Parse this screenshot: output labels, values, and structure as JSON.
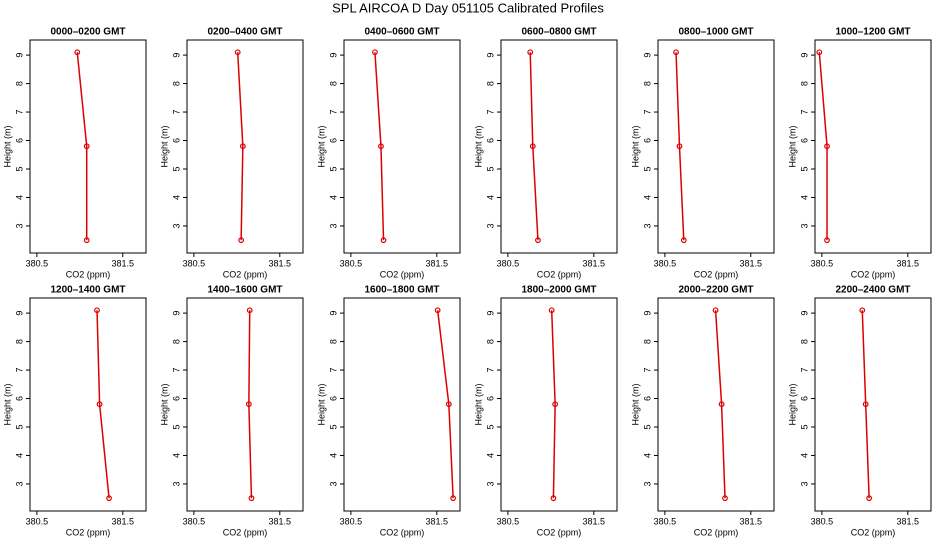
{
  "title": "SPL AIRCOA D  Day 051105  Calibrated Profiles",
  "chart_data": [
    {
      "type": "line",
      "title": "0000–0200 GMT",
      "x_label": "CO2 (ppm)",
      "y_label": "Height (m)",
      "xlim": [
        380.42,
        381.77
      ],
      "ylim": [
        2.05,
        9.53
      ],
      "xticks": [
        380.5,
        381.5
      ],
      "yticks": [
        3,
        4,
        5,
        6,
        7,
        8,
        9
      ],
      "x": [
        380.97,
        381.08,
        381.08
      ],
      "series": [
        {
          "color": "#dd0000",
          "values": [
            9.1,
            5.8,
            2.5
          ]
        }
      ]
    },
    {
      "type": "line",
      "title": "0200–0400 GMT",
      "x_label": "CO2 (ppm)",
      "y_label": "Height (m)",
      "xlim": [
        380.42,
        381.77
      ],
      "ylim": [
        2.05,
        9.53
      ],
      "xticks": [
        380.5,
        381.5
      ],
      "yticks": [
        3,
        4,
        5,
        6,
        7,
        8,
        9
      ],
      "x": [
        381.01,
        381.07,
        381.05
      ],
      "series": [
        {
          "color": "#dd0000",
          "values": [
            9.1,
            5.8,
            2.5
          ]
        }
      ]
    },
    {
      "type": "line",
      "title": "0400–0600 GMT",
      "x_label": "CO2 (ppm)",
      "y_label": "Height (m)",
      "xlim": [
        380.42,
        381.77
      ],
      "ylim": [
        2.05,
        9.53
      ],
      "xticks": [
        380.5,
        381.5
      ],
      "yticks": [
        3,
        4,
        5,
        6,
        7,
        8,
        9
      ],
      "x": [
        380.78,
        380.85,
        380.88
      ],
      "series": [
        {
          "color": "#dd0000",
          "values": [
            9.1,
            5.8,
            2.5
          ]
        }
      ]
    },
    {
      "type": "line",
      "title": "0600–0800 GMT",
      "x_label": "CO2 (ppm)",
      "y_label": "Height (m)",
      "xlim": [
        380.42,
        381.77
      ],
      "ylim": [
        2.05,
        9.53
      ],
      "xticks": [
        380.5,
        381.5
      ],
      "yticks": [
        3,
        4,
        5,
        6,
        7,
        8,
        9
      ],
      "x": [
        380.76,
        380.79,
        380.85
      ],
      "series": [
        {
          "color": "#dd0000",
          "values": [
            9.1,
            5.8,
            2.5
          ]
        }
      ]
    },
    {
      "type": "line",
      "title": "0800–1000 GMT",
      "x_label": "CO2 (ppm)",
      "y_label": "Height (m)",
      "xlim": [
        380.42,
        381.77
      ],
      "ylim": [
        2.05,
        9.53
      ],
      "xticks": [
        380.5,
        381.5
      ],
      "yticks": [
        3,
        4,
        5,
        6,
        7,
        8,
        9
      ],
      "x": [
        380.63,
        380.67,
        380.72
      ],
      "series": [
        {
          "color": "#dd0000",
          "values": [
            9.1,
            5.8,
            2.5
          ]
        }
      ]
    },
    {
      "type": "line",
      "title": "1000–1200 GMT",
      "x_label": "CO2 (ppm)",
      "y_label": "Height (m)",
      "xlim": [
        380.42,
        381.77
      ],
      "ylim": [
        2.05,
        9.53
      ],
      "xticks": [
        380.5,
        381.5
      ],
      "yticks": [
        3,
        4,
        5,
        6,
        7,
        8,
        9
      ],
      "x": [
        380.47,
        380.56,
        380.56
      ],
      "series": [
        {
          "color": "#dd0000",
          "values": [
            9.1,
            5.8,
            2.5
          ]
        }
      ]
    },
    {
      "type": "line",
      "title": "1200–1400 GMT",
      "x_label": "CO2 (ppm)",
      "y_label": "Height (m)",
      "xlim": [
        380.42,
        381.77
      ],
      "ylim": [
        2.05,
        9.53
      ],
      "xticks": [
        380.5,
        381.5
      ],
      "yticks": [
        3,
        4,
        5,
        6,
        7,
        8,
        9
      ],
      "x": [
        381.2,
        381.23,
        381.34
      ],
      "series": [
        {
          "color": "#dd0000",
          "values": [
            9.1,
            5.8,
            2.5
          ]
        }
      ]
    },
    {
      "type": "line",
      "title": "1400–1600 GMT",
      "x_label": "CO2 (ppm)",
      "y_label": "Height (m)",
      "xlim": [
        380.42,
        381.77
      ],
      "ylim": [
        2.05,
        9.53
      ],
      "xticks": [
        380.5,
        381.5
      ],
      "yticks": [
        3,
        4,
        5,
        6,
        7,
        8,
        9
      ],
      "x": [
        381.15,
        381.14,
        381.17
      ],
      "series": [
        {
          "color": "#dd0000",
          "values": [
            9.1,
            5.8,
            2.5
          ]
        }
      ]
    },
    {
      "type": "line",
      "title": "1600–1800 GMT",
      "x_label": "CO2 (ppm)",
      "y_label": "Height (m)",
      "xlim": [
        380.42,
        381.77
      ],
      "ylim": [
        2.05,
        9.53
      ],
      "xticks": [
        380.5,
        381.5
      ],
      "yticks": [
        3,
        4,
        5,
        6,
        7,
        8,
        9
      ],
      "x": [
        381.51,
        381.64,
        381.69
      ],
      "series": [
        {
          "color": "#dd0000",
          "values": [
            9.1,
            5.8,
            2.5
          ]
        }
      ]
    },
    {
      "type": "line",
      "title": "1800–2000 GMT",
      "x_label": "CO2 (ppm)",
      "y_label": "Height (m)",
      "xlim": [
        380.42,
        381.77
      ],
      "ylim": [
        2.05,
        9.53
      ],
      "xticks": [
        380.5,
        381.5
      ],
      "yticks": [
        3,
        4,
        5,
        6,
        7,
        8,
        9
      ],
      "x": [
        381.01,
        381.05,
        381.03
      ],
      "series": [
        {
          "color": "#dd0000",
          "values": [
            9.1,
            5.8,
            2.5
          ]
        }
      ]
    },
    {
      "type": "line",
      "title": "2000–2200 GMT",
      "x_label": "CO2 (ppm)",
      "y_label": "Height (m)",
      "xlim": [
        380.42,
        381.77
      ],
      "ylim": [
        2.05,
        9.53
      ],
      "xticks": [
        380.5,
        381.5
      ],
      "yticks": [
        3,
        4,
        5,
        6,
        7,
        8,
        9
      ],
      "x": [
        381.09,
        381.16,
        381.2
      ],
      "series": [
        {
          "color": "#dd0000",
          "values": [
            9.1,
            5.8,
            2.5
          ]
        }
      ]
    },
    {
      "type": "line",
      "title": "2200–2400 GMT",
      "x_label": "CO2 (ppm)",
      "y_label": "Height (m)",
      "xlim": [
        380.42,
        381.77
      ],
      "ylim": [
        2.05,
        9.53
      ],
      "xticks": [
        380.5,
        381.5
      ],
      "yticks": [
        3,
        4,
        5,
        6,
        7,
        8,
        9
      ],
      "x": [
        380.97,
        381.01,
        381.05
      ],
      "series": [
        {
          "color": "#dd0000",
          "values": [
            9.1,
            5.8,
            2.5
          ]
        }
      ]
    }
  ]
}
